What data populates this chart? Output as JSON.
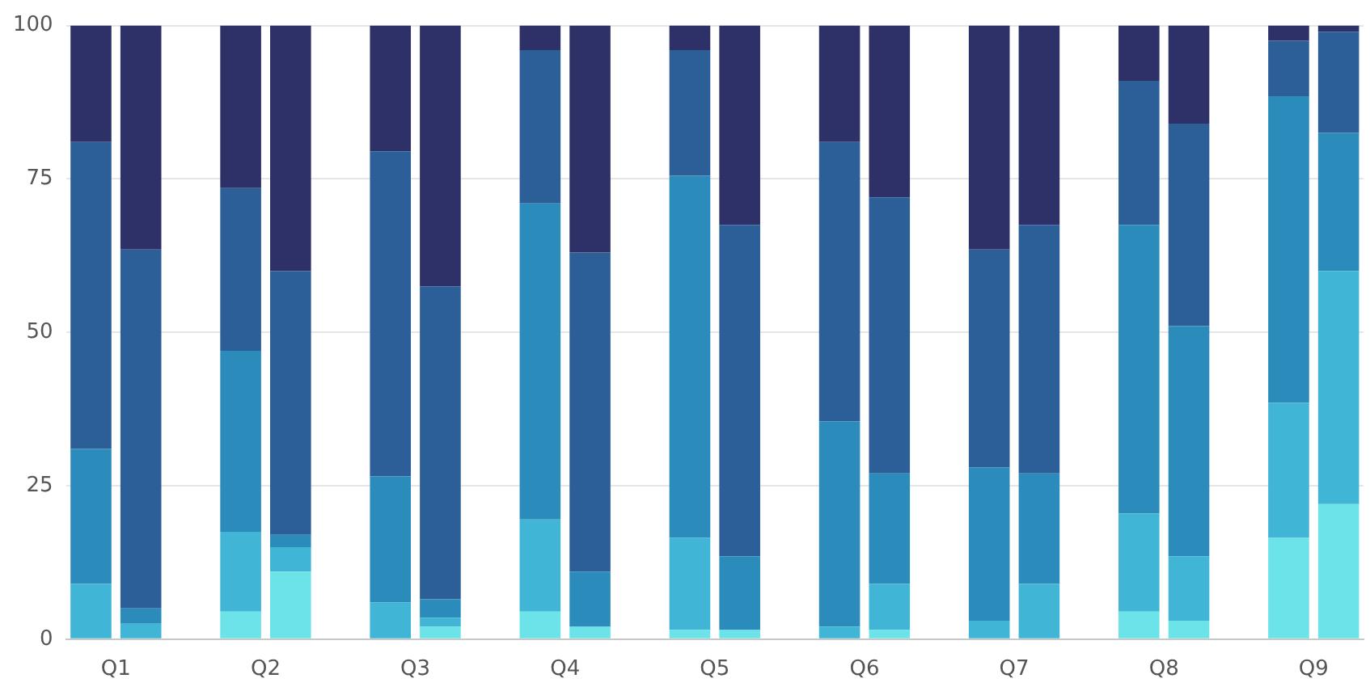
{
  "chart_data": {
    "type": "bar",
    "stacked": true,
    "categories": [
      "Q1",
      null,
      null,
      "Q2",
      null,
      null,
      "Q3",
      null,
      null,
      "Q4",
      null,
      null,
      "Q5",
      null,
      null,
      "Q6",
      null,
      null,
      "Q7",
      null,
      null,
      "Q8",
      null,
      null,
      "Q9",
      null
    ],
    "ylim": [
      0,
      100
    ],
    "yticks": [
      0,
      25,
      50,
      75,
      100
    ],
    "grid": "y",
    "legend": false,
    "series": [
      {
        "color": "#6ce3e8",
        "values": [
          0,
          0,
          null,
          4.5,
          11,
          null,
          0,
          2,
          null,
          4.5,
          2,
          null,
          1.5,
          1.5,
          null,
          0,
          1.5,
          null,
          0,
          0,
          null,
          4.5,
          3,
          null,
          16.5,
          22
        ]
      },
      {
        "color": "#40b5d6",
        "values": [
          9,
          2.5,
          null,
          13,
          4,
          null,
          6,
          1.5,
          null,
          15,
          0,
          null,
          15,
          0,
          null,
          2,
          7.5,
          null,
          3,
          9,
          null,
          16,
          10.5,
          null,
          22,
          38
        ]
      },
      {
        "color": "#2b8cbb",
        "values": [
          22,
          2.5,
          null,
          29.5,
          2,
          null,
          20.5,
          3,
          null,
          51.5,
          9,
          null,
          59,
          12,
          null,
          33.5,
          18,
          null,
          25,
          18,
          null,
          47,
          37.5,
          null,
          50,
          22.5
        ]
      },
      {
        "color": "#2c5f98",
        "values": [
          50,
          58.5,
          null,
          26.5,
          43,
          null,
          53,
          51,
          null,
          25,
          52,
          null,
          20.5,
          54,
          null,
          45.5,
          45,
          null,
          35.5,
          40.5,
          null,
          23.5,
          33,
          null,
          9,
          16.5
        ]
      },
      {
        "color": "#2e3168",
        "values": [
          19,
          36.5,
          null,
          26.5,
          40,
          null,
          20.5,
          42.5,
          null,
          4,
          37,
          null,
          4,
          32.5,
          null,
          19,
          28,
          null,
          36.5,
          32.5,
          null,
          9,
          16,
          null,
          2.5,
          1
        ]
      }
    ]
  }
}
